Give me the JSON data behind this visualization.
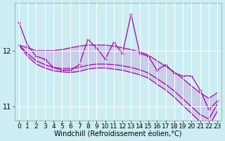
{
  "xlabel": "Windchill (Refroidissement éolien,°C)",
  "bg_color": "#cceef2",
  "line_color": "#aa00aa",
  "grid_color": "#ffffff",
  "x": [
    0,
    1,
    2,
    3,
    4,
    5,
    6,
    7,
    8,
    9,
    10,
    11,
    12,
    13,
    14,
    15,
    16,
    17,
    18,
    19,
    20,
    21,
    22,
    23
  ],
  "y_main": [
    12.5,
    12.1,
    11.9,
    11.85,
    11.7,
    11.65,
    11.65,
    11.75,
    12.2,
    12.05,
    11.85,
    12.15,
    11.95,
    12.65,
    11.95,
    11.9,
    11.65,
    11.75,
    11.6,
    11.55,
    11.55,
    11.3,
    10.95,
    11.1
  ],
  "y_upper": [
    12.1,
    12.05,
    12.0,
    12.0,
    12.0,
    12.02,
    12.05,
    12.08,
    12.1,
    12.1,
    12.1,
    12.08,
    12.05,
    12.02,
    11.98,
    11.92,
    11.82,
    11.72,
    11.62,
    11.5,
    11.37,
    11.25,
    11.15,
    11.25
  ],
  "y_lower1": [
    12.1,
    11.95,
    11.82,
    11.75,
    11.7,
    11.68,
    11.68,
    11.7,
    11.74,
    11.76,
    11.76,
    11.75,
    11.73,
    11.7,
    11.66,
    11.6,
    11.5,
    11.4,
    11.28,
    11.14,
    11.0,
    10.86,
    10.78,
    11.05
  ],
  "y_lower2": [
    12.1,
    11.9,
    11.76,
    11.69,
    11.64,
    11.62,
    11.61,
    11.63,
    11.67,
    11.69,
    11.69,
    11.67,
    11.65,
    11.61,
    11.57,
    11.51,
    11.4,
    11.3,
    11.17,
    11.02,
    10.88,
    10.73,
    10.65,
    10.92
  ],
  "ylim": [
    10.75,
    12.85
  ],
  "yticks": [
    11,
    12
  ],
  "xticks": [
    0,
    1,
    2,
    3,
    4,
    5,
    6,
    7,
    8,
    9,
    10,
    11,
    12,
    13,
    14,
    15,
    16,
    17,
    18,
    19,
    20,
    21,
    22,
    23
  ],
  "font_size": 6.5,
  "xlabel_fontsize": 7
}
